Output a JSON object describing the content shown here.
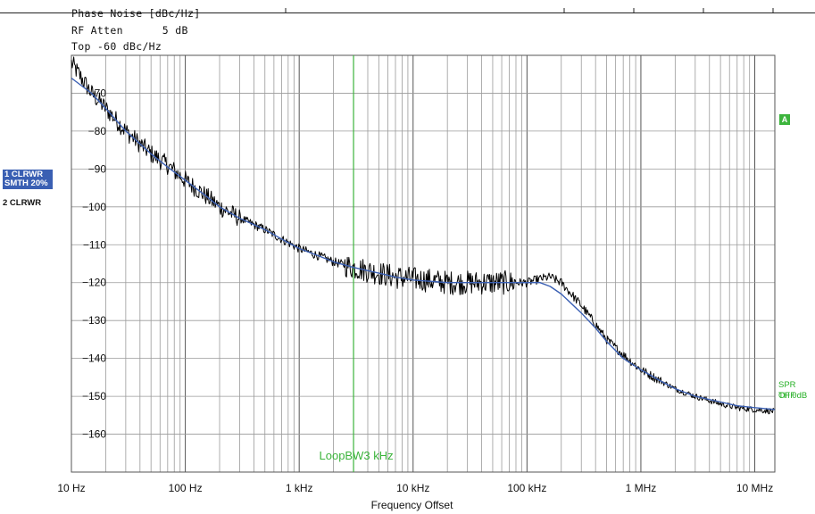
{
  "header": {
    "measurement": "Phase Noise [dBc/Hz]",
    "rf_atten_label": "RF Atten",
    "rf_atten_value": "5 dB",
    "top_label": "Top -60 dBc/Hz"
  },
  "traces": {
    "trace1_line1": "1 CLRWR",
    "trace1_line2": "SMTH 20%",
    "trace2": "2 CLRWR"
  },
  "side": {
    "marker": "A",
    "spr_line1": "SPR OFF",
    "spr_line2": "TH 0dB"
  },
  "colors": {
    "trace_raw": "#000000",
    "trace_smooth": "#3a5fb3",
    "loop_bw": "#3cb43c",
    "grid": "#9a9a9a"
  },
  "chart_data": {
    "type": "line",
    "title": "Phase Noise [dBc/Hz]",
    "xlabel": "Frequency Offset",
    "ylabel": "",
    "x_scale": "log",
    "xlim": [
      10,
      15000000
    ],
    "ylim": [
      -170,
      -60
    ],
    "grid": true,
    "x_ticks": [
      10,
      100,
      1000,
      10000,
      100000,
      1000000,
      10000000
    ],
    "x_tick_labels": [
      "10 Hz",
      "100 Hz",
      "1 kHz",
      "10 kHz",
      "100 kHz",
      "1 MHz",
      "10 MHz"
    ],
    "y_ticks": [
      -70,
      -80,
      -90,
      -100,
      -110,
      -120,
      -130,
      -140,
      -150,
      -160
    ],
    "y_tick_labels": [
      "-70",
      "-80",
      "-90",
      "-100",
      "-110",
      "-120",
      "-130",
      "-140",
      "-150",
      "-160"
    ],
    "annotations": [
      {
        "text": "LoopBW3 kHz",
        "x": 3000
      }
    ],
    "series": [
      {
        "x": [
          10,
          15,
          20,
          30,
          50,
          70,
          100,
          150,
          200,
          300,
          500,
          700,
          1000,
          1500,
          2000,
          3000,
          5000,
          7000,
          10000,
          15000,
          20000,
          30000,
          50000,
          70000,
          100000,
          130000,
          160000,
          200000,
          300000,
          400000,
          500000,
          700000,
          1000000,
          1500000,
          2000000,
          3000000,
          5000000,
          7000000,
          10000000,
          15000000
        ],
        "values": [
          -62,
          -70,
          -74,
          -80,
          -86,
          -89,
          -93,
          -97,
          -100,
          -103,
          -106,
          -108.5,
          -111,
          -113,
          -114.5,
          -116,
          -117.5,
          -118.5,
          -119,
          -119.5,
          -120,
          -120,
          -120,
          -120,
          -120,
          -119,
          -118.5,
          -120,
          -126,
          -131,
          -135,
          -139,
          -143,
          -146,
          -148,
          -150,
          -152,
          -153,
          -153.5,
          -154
        ]
      },
      {
        "x": [
          10,
          15,
          20,
          30,
          50,
          70,
          100,
          150,
          200,
          300,
          500,
          700,
          1000,
          1500,
          2000,
          3000,
          5000,
          7000,
          10000,
          15000,
          20000,
          30000,
          50000,
          70000,
          100000,
          130000,
          160000,
          200000,
          300000,
          400000,
          500000,
          700000,
          1000000,
          1500000,
          2000000,
          3000000,
          5000000,
          7000000,
          10000000,
          15000000
        ],
        "values": [
          -66,
          -70,
          -74,
          -80,
          -86,
          -89.5,
          -93,
          -97,
          -100,
          -103,
          -106,
          -108.5,
          -111,
          -113,
          -114.5,
          -116,
          -117.5,
          -118.5,
          -119.3,
          -119.7,
          -120,
          -120,
          -120,
          -120,
          -120,
          -120,
          -121,
          -123,
          -128,
          -132,
          -135.5,
          -140,
          -143,
          -146,
          -148,
          -150,
          -151.5,
          -152.5,
          -153,
          -153.5
        ]
      }
    ]
  }
}
